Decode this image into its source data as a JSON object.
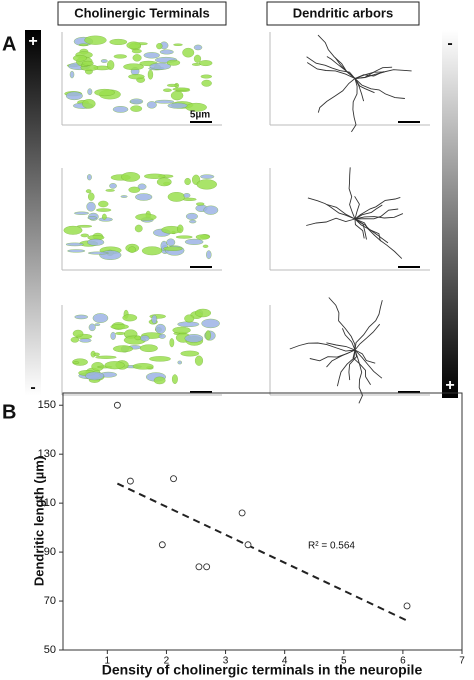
{
  "panel_a": {
    "label": "A",
    "headers": [
      "Cholinergic Terminals",
      "Dendritic arbors"
    ],
    "scale_label": "5µm",
    "left_bar": {
      "top": "+",
      "bottom": "-"
    },
    "right_bar": {
      "top": "-",
      "bottom": "+"
    }
  },
  "panel_b": {
    "label": "B"
  },
  "chart_data": {
    "type": "scatter",
    "x_label": "Density of cholinergic terminals in the neuropile",
    "y_label": "Dendritic length (µm)",
    "series": [
      {
        "color": "#333333",
        "x": [
          1.17,
          1.39,
          2.12,
          1.93,
          2.55,
          2.68,
          3.28,
          3.38,
          6.07
        ],
        "values": [
          150,
          119,
          120,
          93,
          84,
          84,
          106,
          93,
          68
        ]
      }
    ],
    "trendline": {
      "x": [
        1.17,
        6.07
      ],
      "values": [
        118,
        62
      ],
      "color": "#222222"
    },
    "annotation": "R² = 0.564",
    "xlim": [
      0.25,
      7
    ],
    "xticks": [
      1,
      2,
      3,
      4,
      5,
      6,
      7
    ],
    "ylim": [
      50,
      155
    ],
    "yticks": [
      50,
      70,
      90,
      110,
      130,
      150
    ]
  }
}
